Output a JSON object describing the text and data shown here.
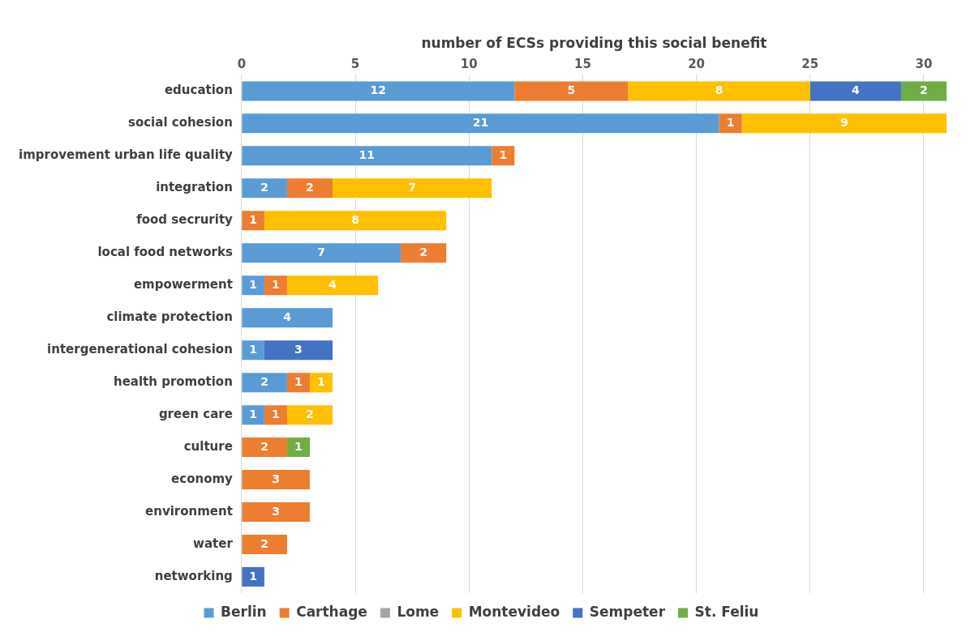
{
  "chart_data": {
    "type": "bar",
    "orientation": "horizontal",
    "stacked": true,
    "xlabel": "number of ECSs providing this social benefit",
    "categories": [
      "education",
      "social cohesion",
      "improvement urban life quality",
      "integration",
      "food secrurity",
      "local food networks",
      "empowerment",
      "climate protection",
      "intergenerational cohesion",
      "health promotion",
      "green care",
      "culture",
      "economy",
      "environment",
      "water",
      "networking"
    ],
    "series": [
      {
        "name": "Berlin",
        "color": "#5b9bd5",
        "values": [
          12,
          21,
          11,
          2,
          null,
          7,
          1,
          4,
          1,
          2,
          1,
          null,
          null,
          null,
          null,
          null
        ]
      },
      {
        "name": "Carthage",
        "color": "#ed7d31",
        "values": [
          5,
          1,
          1,
          2,
          1,
          2,
          1,
          null,
          null,
          1,
          1,
          2,
          3,
          3,
          2,
          null
        ]
      },
      {
        "name": "Lome",
        "color": "#a5a5a5",
        "values": [
          null,
          null,
          null,
          null,
          null,
          null,
          null,
          null,
          null,
          null,
          null,
          null,
          null,
          null,
          null,
          null
        ]
      },
      {
        "name": "Montevideo",
        "color": "#ffc000",
        "values": [
          8,
          9,
          null,
          7,
          8,
          null,
          4,
          null,
          null,
          1,
          2,
          null,
          null,
          null,
          null,
          null
        ]
      },
      {
        "name": "Sempeter",
        "color": "#4472c4",
        "values": [
          4,
          null,
          null,
          null,
          null,
          null,
          null,
          null,
          3,
          null,
          null,
          null,
          null,
          null,
          null,
          1
        ]
      },
      {
        "name": "St. Feliu",
        "color": "#70ad47",
        "values": [
          2,
          null,
          null,
          null,
          null,
          null,
          null,
          null,
          null,
          null,
          null,
          1,
          null,
          null,
          null,
          null
        ]
      }
    ],
    "xlim": [
      0,
      31
    ],
    "xticks": [
      0,
      5,
      10,
      15,
      20,
      25,
      30
    ],
    "grid": "x",
    "legend": "bottom",
    "data_labels": true
  }
}
